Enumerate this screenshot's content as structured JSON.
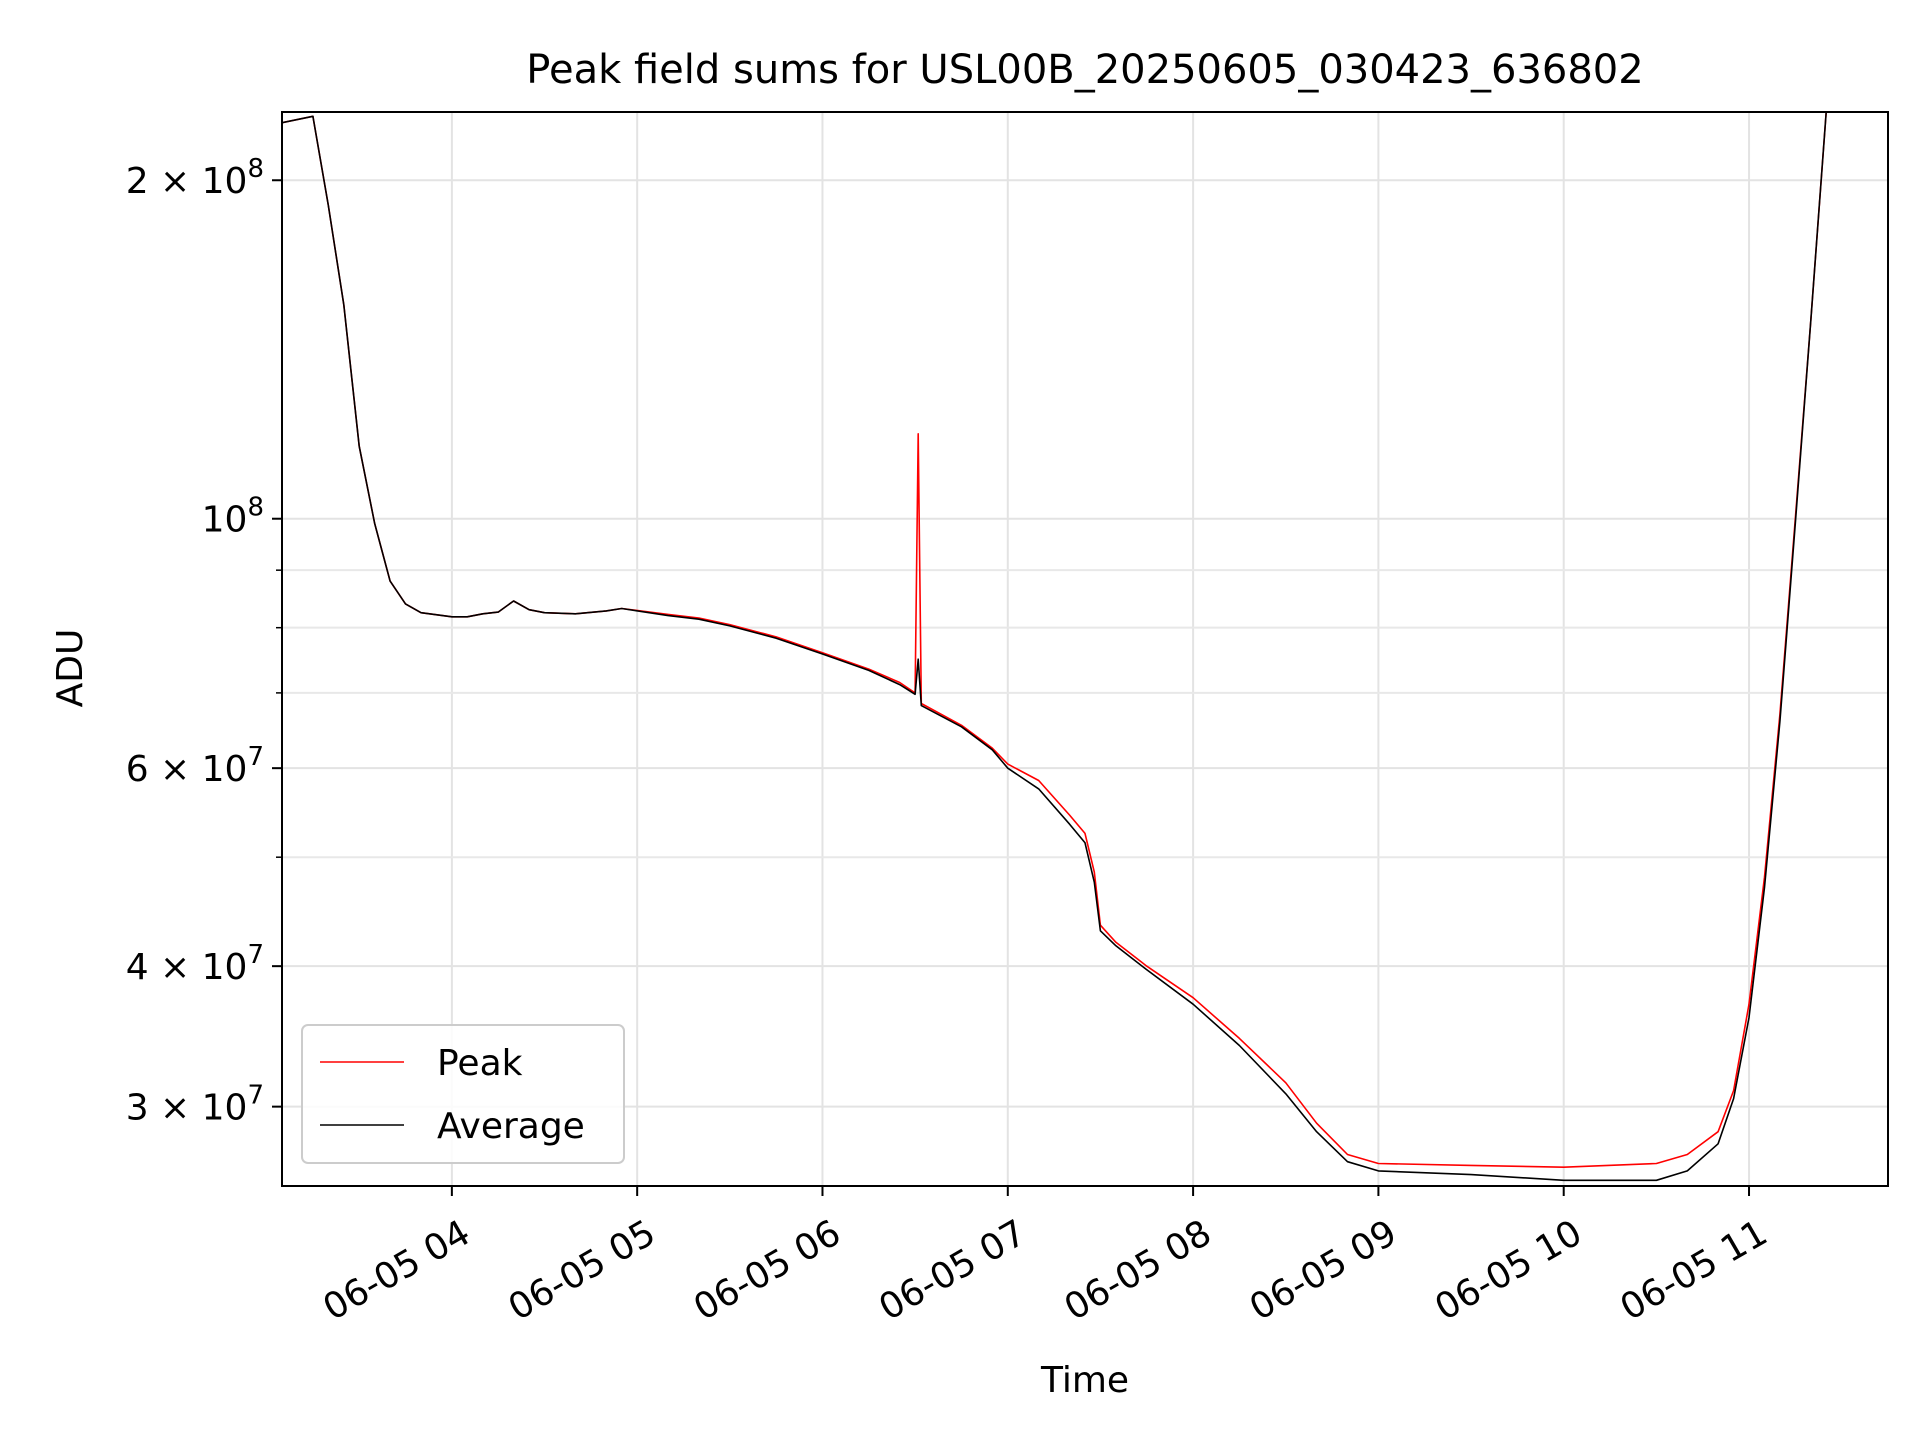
{
  "chart_data": {
    "type": "line",
    "title": "Peak field sums for USL00B_20250605_030423_636802",
    "xlabel": "Time",
    "ylabel": "ADU",
    "xlim": [
      "2025-06-05 03:05",
      "2025-06-05 11:45"
    ],
    "ylim": [
      25500000,
      230000000
    ],
    "yscale": "log",
    "grid": true,
    "legend_position": "lower-left",
    "x_ticks": [
      {
        "value": "2025-06-05 04:00",
        "label": "06-05 04"
      },
      {
        "value": "2025-06-05 05:00",
        "label": "06-05 05"
      },
      {
        "value": "2025-06-05 06:00",
        "label": "06-05 06"
      },
      {
        "value": "2025-06-05 07:00",
        "label": "06-05 07"
      },
      {
        "value": "2025-06-05 08:00",
        "label": "06-05 08"
      },
      {
        "value": "2025-06-05 09:00",
        "label": "06-05 09"
      },
      {
        "value": "2025-06-05 10:00",
        "label": "06-05 10"
      },
      {
        "value": "2025-06-05 11:00",
        "label": "06-05 11"
      }
    ],
    "y_ticks": [
      {
        "value": 30000000,
        "mantissa": "3",
        "exponent": "7"
      },
      {
        "value": 40000000,
        "mantissa": "4",
        "exponent": "7"
      },
      {
        "value": 60000000,
        "mantissa": "6",
        "exponent": "7"
      },
      {
        "value": 100000000,
        "mantissa": "",
        "exponent": "8"
      },
      {
        "value": 200000000,
        "mantissa": "2",
        "exponent": "8"
      }
    ],
    "y_minor_ticks": [
      50000000,
      70000000,
      80000000,
      90000000
    ],
    "series": [
      {
        "name": "Peak",
        "color": "#ff0000",
        "points": [
          [
            "2025-06-05 03:05",
            225000000
          ],
          [
            "2025-06-05 03:15",
            228000000
          ],
          [
            "2025-06-05 03:20",
            190000000
          ],
          [
            "2025-06-05 03:25",
            155000000
          ],
          [
            "2025-06-05 03:30",
            116000000
          ],
          [
            "2025-06-05 03:35",
            99000000
          ],
          [
            "2025-06-05 03:40",
            88000000
          ],
          [
            "2025-06-05 03:45",
            84000000
          ],
          [
            "2025-06-05 03:50",
            82500000
          ],
          [
            "2025-06-05 04:00",
            81800000
          ],
          [
            "2025-06-05 04:05",
            81800000
          ],
          [
            "2025-06-05 04:10",
            82300000
          ],
          [
            "2025-06-05 04:15",
            82600000
          ],
          [
            "2025-06-05 04:20",
            84500000
          ],
          [
            "2025-06-05 04:25",
            83000000
          ],
          [
            "2025-06-05 04:30",
            82500000
          ],
          [
            "2025-06-05 04:40",
            82300000
          ],
          [
            "2025-06-05 04:50",
            82800000
          ],
          [
            "2025-06-05 04:55",
            83200000
          ],
          [
            "2025-06-05 05:10",
            82200000
          ],
          [
            "2025-06-05 05:20",
            81600000
          ],
          [
            "2025-06-05 05:30",
            80500000
          ],
          [
            "2025-06-05 05:45",
            78500000
          ],
          [
            "2025-06-05 06:00",
            76000000
          ],
          [
            "2025-06-05 06:15",
            73500000
          ],
          [
            "2025-06-05 06:25",
            71500000
          ],
          [
            "2025-06-05 06:30",
            70000000
          ],
          [
            "2025-06-05 06:31",
            119000000
          ],
          [
            "2025-06-05 06:32",
            68500000
          ],
          [
            "2025-06-05 06:45",
            65500000
          ],
          [
            "2025-06-05 06:55",
            62500000
          ],
          [
            "2025-06-05 07:00",
            60500000
          ],
          [
            "2025-06-05 07:10",
            58500000
          ],
          [
            "2025-06-05 07:20",
            54500000
          ],
          [
            "2025-06-05 07:25",
            52500000
          ],
          [
            "2025-06-05 07:28",
            48500000
          ],
          [
            "2025-06-05 07:30",
            43500000
          ],
          [
            "2025-06-05 07:35",
            42000000
          ],
          [
            "2025-06-05 07:45",
            40000000
          ],
          [
            "2025-06-05 08:00",
            37500000
          ],
          [
            "2025-06-05 08:15",
            34500000
          ],
          [
            "2025-06-05 08:30",
            31500000
          ],
          [
            "2025-06-05 08:40",
            29000000
          ],
          [
            "2025-06-05 08:50",
            27200000
          ],
          [
            "2025-06-05 09:00",
            26700000
          ],
          [
            "2025-06-05 09:30",
            26600000
          ],
          [
            "2025-06-05 10:00",
            26500000
          ],
          [
            "2025-06-05 10:30",
            26700000
          ],
          [
            "2025-06-05 10:40",
            27200000
          ],
          [
            "2025-06-05 10:50",
            28500000
          ],
          [
            "2025-06-05 10:55",
            31000000
          ],
          [
            "2025-06-05 11:00",
            37000000
          ],
          [
            "2025-06-05 11:05",
            48000000
          ],
          [
            "2025-06-05 11:10",
            67000000
          ],
          [
            "2025-06-05 11:15",
            100000000
          ],
          [
            "2025-06-05 11:20",
            150000000
          ],
          [
            "2025-06-05 11:25",
            230000000
          ]
        ]
      },
      {
        "name": "Average",
        "color": "#000000",
        "points": [
          [
            "2025-06-05 03:05",
            225000000
          ],
          [
            "2025-06-05 03:15",
            228000000
          ],
          [
            "2025-06-05 03:20",
            190000000
          ],
          [
            "2025-06-05 03:25",
            155000000
          ],
          [
            "2025-06-05 03:30",
            116000000
          ],
          [
            "2025-06-05 03:35",
            99000000
          ],
          [
            "2025-06-05 03:40",
            88000000
          ],
          [
            "2025-06-05 03:45",
            84000000
          ],
          [
            "2025-06-05 03:50",
            82500000
          ],
          [
            "2025-06-05 04:00",
            81800000
          ],
          [
            "2025-06-05 04:05",
            81800000
          ],
          [
            "2025-06-05 04:10",
            82300000
          ],
          [
            "2025-06-05 04:15",
            82600000
          ],
          [
            "2025-06-05 04:20",
            84500000
          ],
          [
            "2025-06-05 04:25",
            83000000
          ],
          [
            "2025-06-05 04:30",
            82500000
          ],
          [
            "2025-06-05 04:40",
            82300000
          ],
          [
            "2025-06-05 04:50",
            82800000
          ],
          [
            "2025-06-05 04:55",
            83200000
          ],
          [
            "2025-06-05 05:10",
            82000000
          ],
          [
            "2025-06-05 05:20",
            81400000
          ],
          [
            "2025-06-05 05:30",
            80300000
          ],
          [
            "2025-06-05 05:45",
            78300000
          ],
          [
            "2025-06-05 06:00",
            75800000
          ],
          [
            "2025-06-05 06:15",
            73300000
          ],
          [
            "2025-06-05 06:25",
            71200000
          ],
          [
            "2025-06-05 06:30",
            69800000
          ],
          [
            "2025-06-05 06:31",
            75000000
          ],
          [
            "2025-06-05 06:32",
            68200000
          ],
          [
            "2025-06-05 06:45",
            65300000
          ],
          [
            "2025-06-05 06:55",
            62300000
          ],
          [
            "2025-06-05 07:00",
            60000000
          ],
          [
            "2025-06-05 07:10",
            57500000
          ],
          [
            "2025-06-05 07:20",
            53500000
          ],
          [
            "2025-06-05 07:25",
            51500000
          ],
          [
            "2025-06-05 07:28",
            47500000
          ],
          [
            "2025-06-05 07:30",
            43000000
          ],
          [
            "2025-06-05 07:35",
            41700000
          ],
          [
            "2025-06-05 07:45",
            39700000
          ],
          [
            "2025-06-05 08:00",
            37000000
          ],
          [
            "2025-06-05 08:15",
            34000000
          ],
          [
            "2025-06-05 08:30",
            30800000
          ],
          [
            "2025-06-05 08:40",
            28500000
          ],
          [
            "2025-06-05 08:50",
            26800000
          ],
          [
            "2025-06-05 09:00",
            26300000
          ],
          [
            "2025-06-05 09:30",
            26100000
          ],
          [
            "2025-06-05 10:00",
            25800000
          ],
          [
            "2025-06-05 10:30",
            25800000
          ],
          [
            "2025-06-05 10:40",
            26300000
          ],
          [
            "2025-06-05 10:50",
            27800000
          ],
          [
            "2025-06-05 10:55",
            30500000
          ],
          [
            "2025-06-05 11:00",
            36000000
          ],
          [
            "2025-06-05 11:05",
            47000000
          ],
          [
            "2025-06-05 11:10",
            66000000
          ],
          [
            "2025-06-05 11:15",
            99000000
          ],
          [
            "2025-06-05 11:20",
            150000000
          ],
          [
            "2025-06-05 11:25",
            230000000
          ]
        ]
      }
    ]
  }
}
